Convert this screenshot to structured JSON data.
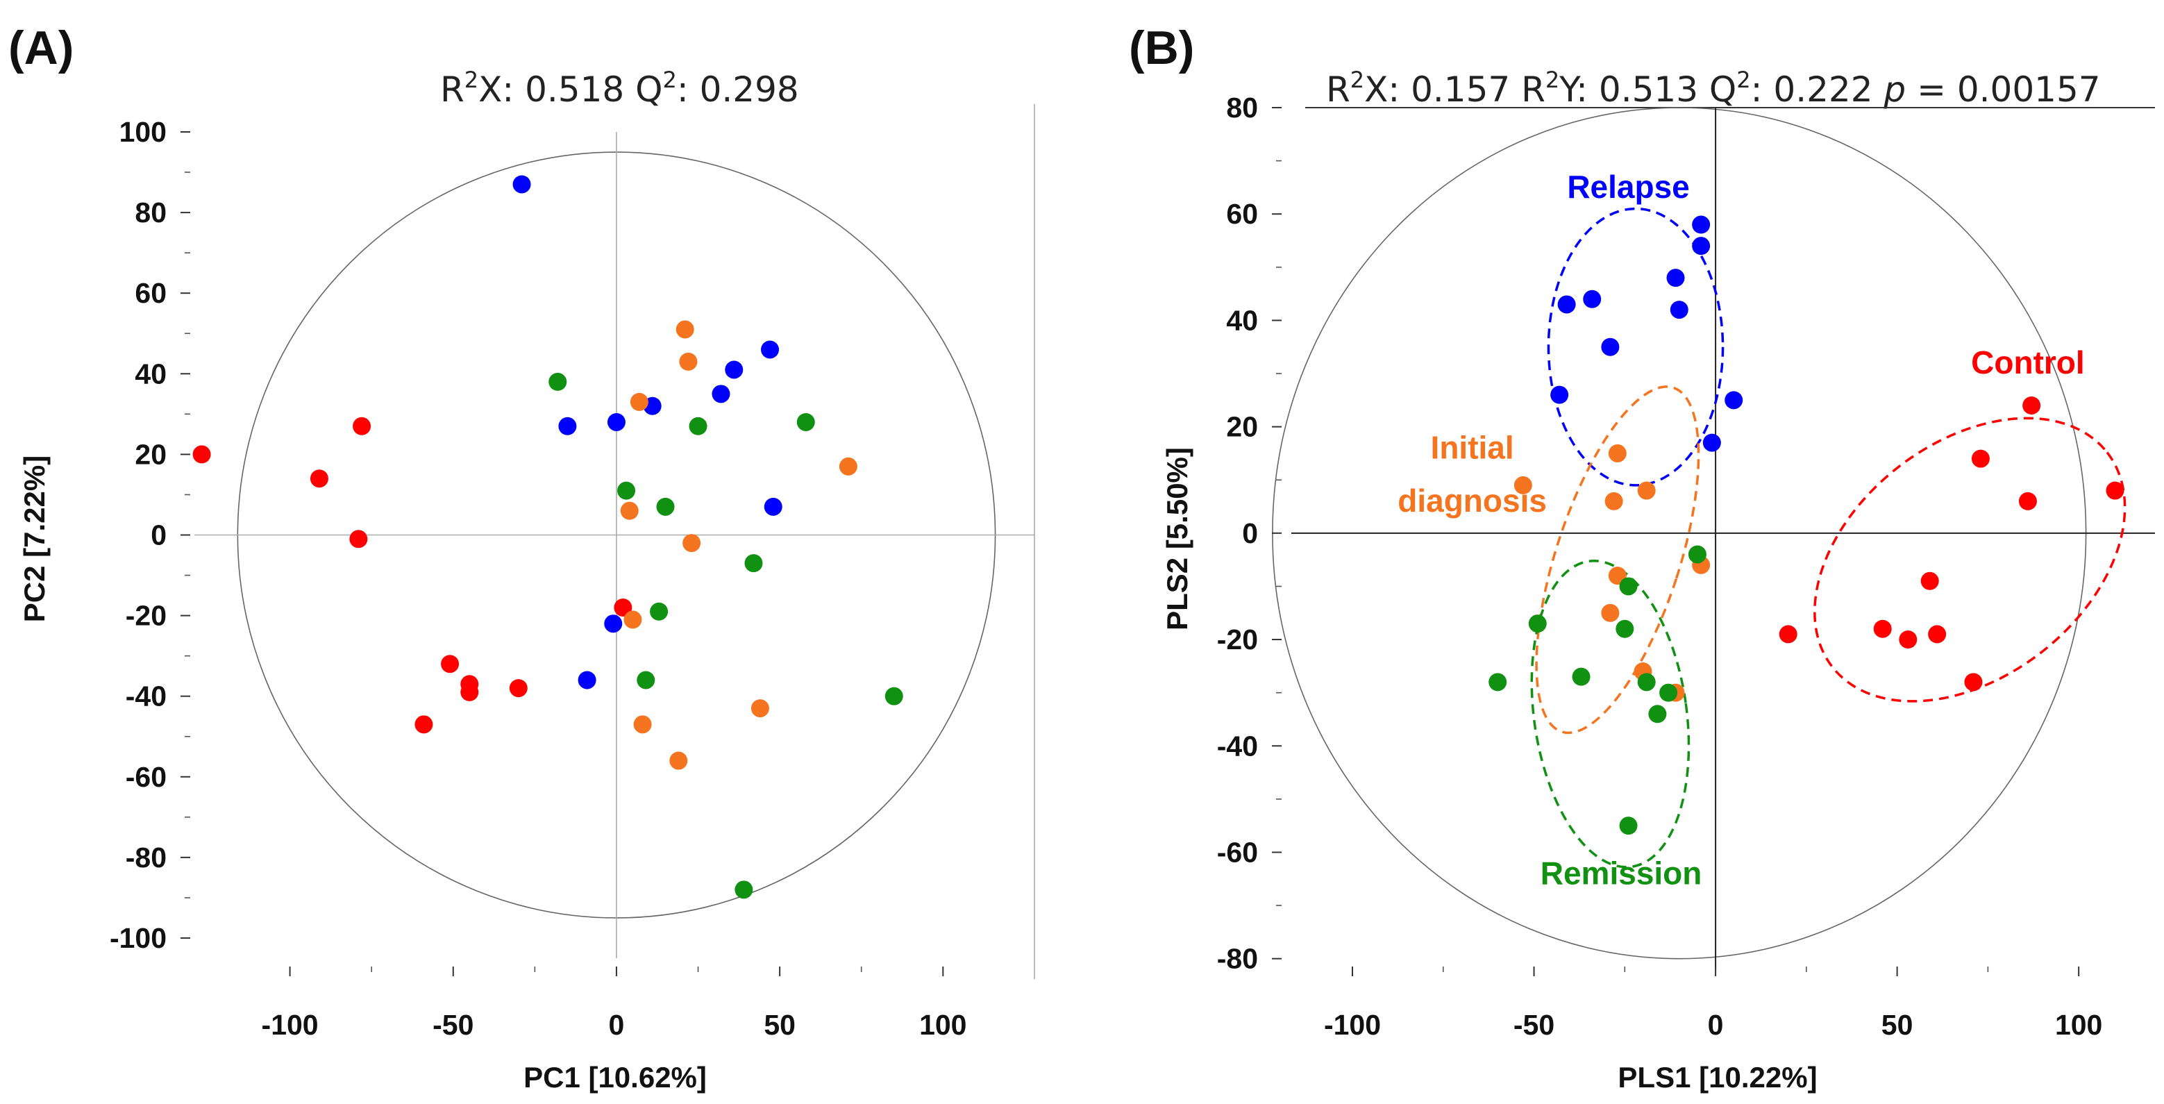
{
  "colors": {
    "Control": "#ff0000",
    "Relapse": "#0000ff",
    "Initial diagnosis": "#f5741f",
    "Remission": "#119111"
  },
  "chart_data": [
    {
      "type": "scatter",
      "panel_label": "(A)",
      "title": "R²X: 0.518 Q²: 0.298",
      "title_parts": {
        "r2x_label": "R",
        "r2x_sup": "2",
        "r2x_rest": "X: 0.518 Q",
        "q2_sup": "2",
        "q2_rest": ": 0.298"
      },
      "xlabel": "PC1 [10.62%]",
      "ylabel": "PC2 [7.22%]",
      "xlim": [
        -125,
        128
      ],
      "ylim": [
        -105,
        100
      ],
      "xticks": [
        -100,
        -50,
        0,
        50,
        100
      ],
      "yticks": [
        100,
        80,
        60,
        40,
        20,
        0,
        -20,
        -40,
        -60,
        -80,
        -100
      ],
      "ellipse": {
        "cx": 0,
        "cy": 0,
        "rx": 116,
        "ry": 95
      },
      "series": [
        {
          "name": "Control",
          "points": [
            [
              -127,
              20
            ],
            [
              -91,
              14
            ],
            [
              -78,
              27
            ],
            [
              -79,
              -1
            ],
            [
              -59,
              -47
            ],
            [
              -51,
              -32
            ],
            [
              -45,
              -37
            ],
            [
              -45,
              -39
            ],
            [
              -30,
              -38
            ],
            [
              2,
              -18
            ]
          ]
        },
        {
          "name": "Relapse",
          "points": [
            [
              -29,
              87
            ],
            [
              -15,
              27
            ],
            [
              0,
              28
            ],
            [
              11,
              32
            ],
            [
              32,
              35
            ],
            [
              36,
              41
            ],
            [
              47,
              46
            ],
            [
              48,
              7
            ],
            [
              -1,
              -22
            ],
            [
              -9,
              -36
            ]
          ]
        },
        {
          "name": "Initial diagnosis",
          "points": [
            [
              21,
              51
            ],
            [
              22,
              43
            ],
            [
              7,
              33
            ],
            [
              4,
              6
            ],
            [
              23,
              -2
            ],
            [
              71,
              17
            ],
            [
              5,
              -21
            ],
            [
              8,
              -47
            ],
            [
              19,
              -56
            ],
            [
              44,
              -43
            ]
          ]
        },
        {
          "name": "Remission",
          "points": [
            [
              -18,
              38
            ],
            [
              25,
              27
            ],
            [
              58,
              28
            ],
            [
              3,
              11
            ],
            [
              15,
              7
            ],
            [
              42,
              -7
            ],
            [
              13,
              -19
            ],
            [
              9,
              -36
            ],
            [
              85,
              -40
            ],
            [
              39,
              -88
            ]
          ]
        }
      ]
    },
    {
      "type": "scatter",
      "panel_label": "(B)",
      "title": "R²X: 0.157 R²Y: 0.513 Q²: 0.222 p = 0.00157",
      "title_parts": {
        "a": "R",
        "a_sup": "2",
        "b": "X: 0.157 R",
        "b_sup": "2",
        "c": "Y: 0.513 Q",
        "c_sup": "2",
        "d": ": 0.222 ",
        "p_italic": "p",
        "e": " = 0.00157"
      },
      "xlabel": "PLS1 [10.22%]",
      "ylabel": "PLS2 [5.50%]",
      "xlim": [
        -113,
        121
      ],
      "ylim": [
        -82,
        80
      ],
      "xticks": [
        -100,
        -50,
        0,
        50,
        100
      ],
      "yticks": [
        80,
        60,
        40,
        20,
        0,
        -20,
        -40,
        -60,
        -80
      ],
      "ellipse": {
        "cx": -10,
        "cy": 0,
        "rx": 112,
        "ry": 80
      },
      "group_ellipses": [
        {
          "name": "Relapse",
          "cx": -22,
          "cy": 35,
          "rx": 24,
          "ry": 26,
          "angle": 0
        },
        {
          "name": "Control",
          "cx": 70,
          "cy": -5,
          "rx": 48,
          "ry": 22,
          "angle": -38
        },
        {
          "name": "Initial diagnosis",
          "cx": -27,
          "cy": -5,
          "rx": 17,
          "ry": 34,
          "angle": 18
        },
        {
          "name": "Remission",
          "cx": -29,
          "cy": -34,
          "rx": 21,
          "ry": 29,
          "angle": -8
        }
      ],
      "group_labels": [
        {
          "name": "Relapse",
          "text": "Relapse",
          "x": -24,
          "y": 63
        },
        {
          "name": "Control",
          "text": "Control",
          "x": 86,
          "y": 30
        },
        {
          "name": "Initial diagnosis",
          "text": "Initial",
          "x": -67,
          "y": 14
        },
        {
          "name": "Initial diagnosis",
          "text": "diagnosis",
          "x": -67,
          "y": 4
        },
        {
          "name": "Remission",
          "text": "Remission",
          "x": -26,
          "y": -66
        }
      ],
      "series": [
        {
          "name": "Relapse",
          "points": [
            [
              -4,
              58
            ],
            [
              -4,
              54
            ],
            [
              -11,
              48
            ],
            [
              -10,
              42
            ],
            [
              -34,
              44
            ],
            [
              -41,
              43
            ],
            [
              -29,
              35
            ],
            [
              -43,
              26
            ],
            [
              5,
              25
            ],
            [
              -1,
              17
            ]
          ]
        },
        {
          "name": "Control",
          "points": [
            [
              87,
              24
            ],
            [
              110,
              8
            ],
            [
              73,
              14
            ],
            [
              86,
              6
            ],
            [
              59,
              -9
            ],
            [
              20,
              -19
            ],
            [
              46,
              -18
            ],
            [
              53,
              -20
            ],
            [
              61,
              -19
            ],
            [
              71,
              -28
            ]
          ]
        },
        {
          "name": "Initial diagnosis",
          "points": [
            [
              -27,
              15
            ],
            [
              -53,
              9
            ],
            [
              -28,
              6
            ],
            [
              -19,
              8
            ],
            [
              -27,
              -8
            ],
            [
              -29,
              -15
            ],
            [
              -4,
              -6
            ],
            [
              -20,
              -26
            ],
            [
              -11,
              -30
            ]
          ]
        },
        {
          "name": "Remission",
          "points": [
            [
              -5,
              -4
            ],
            [
              -24,
              -10
            ],
            [
              -49,
              -17
            ],
            [
              -25,
              -18
            ],
            [
              -37,
              -27
            ],
            [
              -60,
              -28
            ],
            [
              -19,
              -28
            ],
            [
              -13,
              -30
            ],
            [
              -16,
              -34
            ],
            [
              -24,
              -55
            ]
          ]
        }
      ]
    }
  ]
}
